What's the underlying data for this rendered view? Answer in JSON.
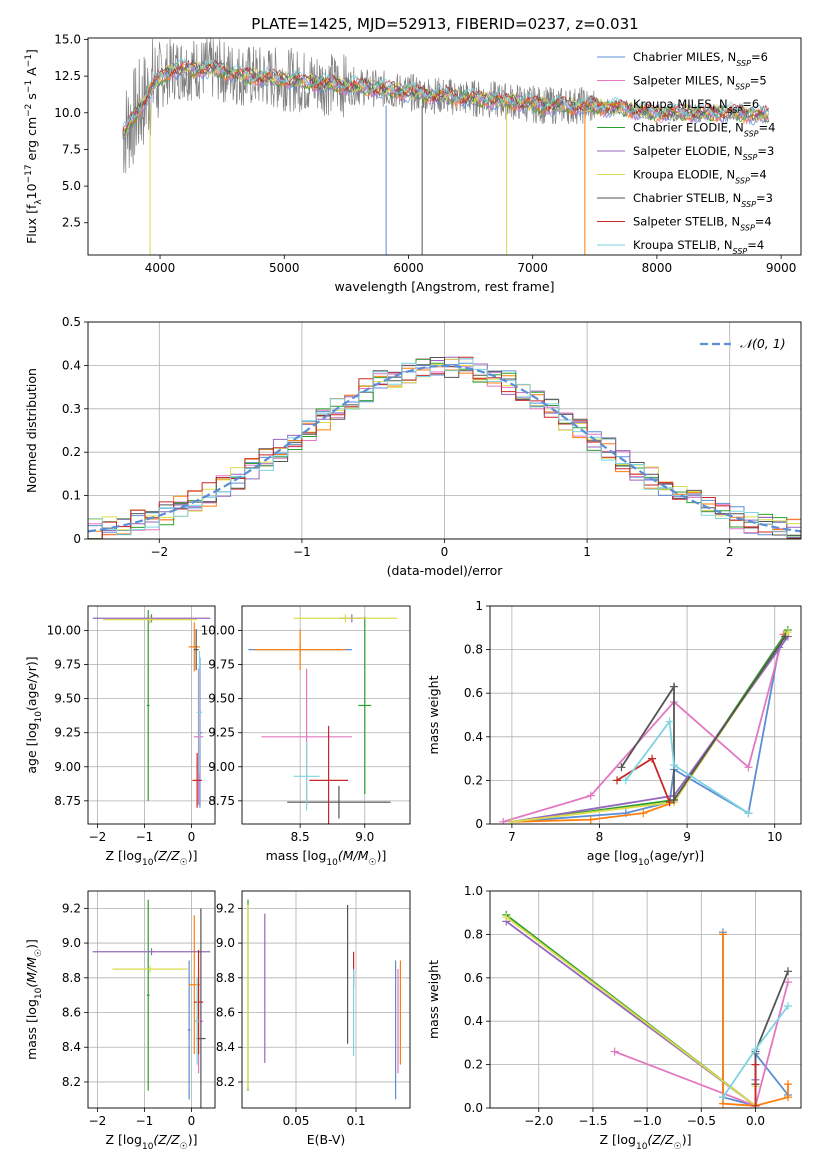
{
  "figure_title": "PLATE=1425, MJD=52913, FIBERID=0237, z=0.031",
  "colors": {
    "Chabrier MILES": "#5b8ed6",
    "Salpeter MILES": "#e377c2",
    "Kroupa MILES": "#ff7f0e",
    "Chabrier ELODIE": "#2ca02c",
    "Salpeter ELODIE": "#9467bd",
    "Kroupa ELODIE": "#dbdb4d",
    "Chabrier STELIB": "#555555",
    "Salpeter STELIB": "#c62828",
    "Kroupa STELIB": "#7fd3e0",
    "data": "#808080"
  },
  "legend_labels": [
    {
      "model": "Chabrier MILES",
      "pre": "Chabrier MILES, N",
      "sub": "SSP",
      "post": "=6"
    },
    {
      "model": "Salpeter MILES",
      "pre": "Salpeter MILES, N",
      "sub": "SSP",
      "post": "=5"
    },
    {
      "model": "Kroupa MILES",
      "pre": "Kroupa MILES, N",
      "sub": "SSP",
      "post": "=6"
    },
    {
      "model": "Chabrier ELODIE",
      "pre": "Chabrier ELODIE, N",
      "sub": "SSP",
      "post": "=4"
    },
    {
      "model": "Salpeter ELODIE",
      "pre": "Salpeter ELODIE, N",
      "sub": "SSP",
      "post": "=3"
    },
    {
      "model": "Kroupa ELODIE",
      "pre": "Kroupa ELODIE, N",
      "sub": "SSP",
      "post": "=4"
    },
    {
      "model": "Chabrier STELIB",
      "pre": "Chabrier STELIB, N",
      "sub": "SSP",
      "post": "=3"
    },
    {
      "model": "Salpeter STELIB",
      "pre": "Salpeter STELIB, N",
      "sub": "SSP",
      "post": "=4"
    },
    {
      "model": "Kroupa STELIB",
      "pre": "Kroupa STELIB, N",
      "sub": "SSP",
      "post": "=4"
    }
  ],
  "chart_data": [
    {
      "id": "spectrum",
      "type": "line",
      "xlabel": "wavelength [Angstrom, rest frame]",
      "ylabel": {
        "pre": "Flux [f",
        "sub": "λ",
        "mid": "10",
        "sup1": "−17",
        "post": " erg cm",
        "sup2": "−2",
        "post2": " s",
        "sup3": "−1",
        "post3": " A",
        "sup4": "−1",
        "end": "]"
      },
      "xlim": [
        3420,
        9160
      ],
      "ylim": [
        0.3,
        15.1
      ],
      "xticks": [
        4000,
        5000,
        6000,
        7000,
        8000,
        9000
      ],
      "yticks": [
        2.5,
        5.0,
        7.5,
        10.0,
        12.5,
        15.0
      ],
      "continuum": {
        "x": [
          3700,
          3850,
          3950,
          4100,
          4400,
          4700,
          5000,
          5300,
          5600,
          5900,
          6200,
          6500,
          6800,
          7100,
          7400,
          7700,
          8000,
          8300,
          8600,
          8900
        ],
        "y": [
          8.5,
          10.5,
          12.0,
          13.0,
          13.0,
          12.5,
          12.3,
          12.0,
          11.8,
          11.5,
          11.2,
          11.0,
          10.8,
          10.5,
          10.5,
          10.3,
          10.0,
          10.0,
          10.0,
          9.8
        ]
      },
      "grid": false
    },
    {
      "id": "residuals",
      "type": "histogram",
      "xlabel": "(data-model)/error",
      "ylabel": "Normed distribution",
      "xlim": [
        -2.5,
        2.5
      ],
      "ylim": [
        0,
        0.5
      ],
      "xticks": [
        -2,
        -1,
        0,
        1,
        2
      ],
      "yticks": [
        0.0,
        0.1,
        0.2,
        0.3,
        0.4,
        0.5
      ],
      "bin_width": 0.1,
      "legend": {
        "label": "𝒩(0, 1)",
        "location": "upper right"
      },
      "grid": true
    },
    {
      "id": "age_vs_Z",
      "type": "errorbar",
      "xlabel": {
        "pre": "Z [log",
        "sub": "10",
        "post": "(Z/Z",
        "sub2": "☉",
        "end": ")]"
      },
      "ylabel": {
        "pre": "age  [log",
        "sub": "10",
        "post": "(age/yr)]"
      },
      "xlim": [
        -2.2,
        0.5
      ],
      "ylim": [
        8.58,
        10.18
      ],
      "xticks": [
        -2,
        -1,
        0
      ],
      "yticks": [
        8.75,
        9.0,
        9.25,
        9.5,
        9.75,
        10.0
      ],
      "points": [
        {
          "model": "Chabrier MILES",
          "x": 0.18,
          "xerr": 0.05,
          "y": 9.25,
          "yerr": 0.55
        },
        {
          "model": "Salpeter MILES",
          "x": 0.15,
          "xerr": 0.1,
          "y": 9.22,
          "yerr": 0.5
        },
        {
          "model": "Kroupa MILES",
          "x": 0.06,
          "xerr": 0.12,
          "y": 9.88,
          "yerr": 0.18
        },
        {
          "model": "Chabrier ELODIE",
          "x": -0.92,
          "xerr": 0.03,
          "y": 9.45,
          "yerr": 0.7
        },
        {
          "model": "Salpeter ELODIE",
          "x": -0.85,
          "xerr": 1.25,
          "y": 10.09,
          "yerr": 0.03
        },
        {
          "model": "Kroupa ELODIE",
          "x": -0.88,
          "xerr": 1.0,
          "y": 10.08,
          "yerr": 0.03
        },
        {
          "model": "Chabrier STELIB",
          "x": 0.1,
          "xerr": 0.05,
          "y": 9.86,
          "yerr": 0.15
        },
        {
          "model": "Salpeter STELIB",
          "x": 0.12,
          "xerr": 0.1,
          "y": 8.9,
          "yerr": 0.2
        },
        {
          "model": "Kroupa STELIB",
          "x": 0.17,
          "xerr": 0.06,
          "y": 9.4,
          "yerr": 0.45
        }
      ],
      "grid": true
    },
    {
      "id": "age_vs_mass",
      "type": "errorbar",
      "xlabel": {
        "pre": "mass [log",
        "sub": "10",
        "post": "(M/M",
        "sub2": "☉",
        "end": ")]"
      },
      "ylabel": "",
      "xlim": [
        8.05,
        9.35
      ],
      "ylim": [
        8.58,
        10.18
      ],
      "xticks": [
        8.5,
        9.0
      ],
      "yticks": [
        8.75,
        9.0,
        9.25,
        9.5,
        9.75,
        10.0
      ],
      "points": [
        {
          "model": "Chabrier MILES",
          "x": 8.5,
          "xerr": 0.4,
          "y": 9.86,
          "yerr": 0.05
        },
        {
          "model": "Salpeter MILES",
          "x": 8.55,
          "xerr": 0.35,
          "y": 9.22,
          "yerr": 0.5
        },
        {
          "model": "Kroupa MILES",
          "x": 8.5,
          "xerr": 0.35,
          "y": 9.86,
          "yerr": 0.15
        },
        {
          "model": "Chabrier ELODIE",
          "x": 9.0,
          "xerr": 0.05,
          "y": 9.45,
          "yerr": 0.65
        },
        {
          "model": "Salpeter ELODIE",
          "x": 8.9,
          "xerr": 0.1,
          "y": 10.09,
          "yerr": 0.03
        },
        {
          "model": "Kroupa ELODIE",
          "x": 8.85,
          "xerr": 0.4,
          "y": 10.09,
          "yerr": 0.03
        },
        {
          "model": "Chabrier STELIB",
          "x": 8.8,
          "xerr": 0.4,
          "y": 8.74,
          "yerr": 0.12
        },
        {
          "model": "Salpeter STELIB",
          "x": 8.72,
          "xerr": 0.15,
          "y": 8.9,
          "yerr": 0.4
        },
        {
          "model": "Kroupa STELIB",
          "x": 8.55,
          "xerr": 0.1,
          "y": 8.93,
          "yerr": 0.25
        }
      ],
      "grid": true
    },
    {
      "id": "mass_weight_vs_age",
      "type": "line",
      "xlabel": {
        "pre": "age  [log",
        "sub": "10",
        "post": "(age/yr)]"
      },
      "ylabel": "mass weight",
      "xlim": [
        6.75,
        10.3
      ],
      "ylim": [
        0,
        1.0
      ],
      "xticks": [
        7,
        8,
        9,
        10
      ],
      "yticks": [
        0.0,
        0.2,
        0.4,
        0.6,
        0.8,
        1.0
      ],
      "series": [
        {
          "model": "Chabrier MILES",
          "x": [
            7.0,
            8.3,
            8.8,
            8.85,
            9.7,
            10.05
          ],
          "y": [
            0.01,
            0.05,
            0.1,
            0.25,
            0.05,
            0.81
          ]
        },
        {
          "model": "Salpeter MILES",
          "x": [
            6.9,
            7.9,
            8.85,
            9.7,
            10.1
          ],
          "y": [
            0.01,
            0.13,
            0.56,
            0.26,
            0.87
          ]
        },
        {
          "model": "Kroupa MILES",
          "x": [
            7.0,
            7.9,
            8.5,
            8.85,
            10.12
          ],
          "y": [
            0.01,
            0.02,
            0.05,
            0.1,
            0.87
          ]
        },
        {
          "model": "Chabrier ELODIE",
          "x": [
            7.0,
            8.85,
            10.15
          ],
          "y": [
            0.01,
            0.11,
            0.89
          ]
        },
        {
          "model": "Salpeter ELODIE",
          "x": [
            7.0,
            8.85,
            10.15
          ],
          "y": [
            0.01,
            0.13,
            0.86
          ]
        },
        {
          "model": "Kroupa ELODIE",
          "x": [
            7.0,
            8.85,
            10.15
          ],
          "y": [
            0.01,
            0.1,
            0.88
          ]
        },
        {
          "model": "Chabrier STELIB",
          "x": [
            8.25,
            8.85,
            8.85,
            10.12
          ],
          "y": [
            0.26,
            0.63,
            0.11,
            0.86
          ]
        },
        {
          "model": "Salpeter STELIB",
          "x": [
            8.2,
            8.6,
            8.8
          ],
          "y": [
            0.2,
            0.3,
            0.1
          ]
        },
        {
          "model": "Kroupa STELIB",
          "x": [
            8.3,
            8.8,
            8.85,
            9.7
          ],
          "y": [
            0.2,
            0.47,
            0.27,
            0.05
          ]
        }
      ],
      "grid": true
    },
    {
      "id": "mass_vs_Z",
      "type": "errorbar",
      "xlabel": {
        "pre": "Z [log",
        "sub": "10",
        "post": "(Z/Z",
        "sub2": "☉",
        "end": ")]"
      },
      "ylabel": {
        "pre": "mass [log",
        "sub": "10",
        "post": "(M/M",
        "sub2": "☉",
        "end": ")]"
      },
      "xlim": [
        -2.2,
        0.5
      ],
      "ylim": [
        8.05,
        9.3
      ],
      "xticks": [
        -2,
        -1,
        0
      ],
      "yticks": [
        8.2,
        8.4,
        8.6,
        8.8,
        9.0,
        9.2
      ],
      "points": [
        {
          "model": "Chabrier MILES",
          "x": -0.05,
          "xerr": 0.03,
          "y": 8.5,
          "yerr": 0.4
        },
        {
          "model": "Salpeter MILES",
          "x": 0.15,
          "xerr": 0.1,
          "y": 8.55,
          "yerr": 0.3
        },
        {
          "model": "Kroupa MILES",
          "x": 0.06,
          "xerr": 0.12,
          "y": 8.76,
          "yerr": 0.4
        },
        {
          "model": "Chabrier ELODIE",
          "x": -0.92,
          "xerr": 0.03,
          "y": 8.7,
          "yerr": 0.55
        },
        {
          "model": "Salpeter ELODIE",
          "x": -0.85,
          "xerr": 1.25,
          "y": 8.95,
          "yerr": 0.02
        },
        {
          "model": "Kroupa ELODIE",
          "x": -0.88,
          "xerr": 0.8,
          "y": 8.85,
          "yerr": 0.02
        },
        {
          "model": "Chabrier STELIB",
          "x": 0.2,
          "xerr": 0.1,
          "y": 8.45,
          "yerr": 0.75
        },
        {
          "model": "Salpeter STELIB",
          "x": 0.15,
          "xerr": 0.1,
          "y": 8.66,
          "yerr": 0.3
        },
        {
          "model": "Kroupa STELIB",
          "x": 0.12,
          "xerr": 0.05,
          "y": 8.55,
          "yerr": 0.25
        }
      ],
      "grid": true
    },
    {
      "id": "mass_vs_EBV",
      "type": "errorbar",
      "xlabel": "E(B-V)",
      "ylabel": "",
      "xlim": [
        0.005,
        0.145
      ],
      "ylim": [
        8.05,
        9.3
      ],
      "xticks": [
        0.05,
        0.1
      ],
      "yticks": [
        8.2,
        8.4,
        8.6,
        8.8,
        9.0,
        9.2
      ],
      "points": [
        {
          "model": "Chabrier MILES",
          "x": 0.133,
          "y": 8.5,
          "yerr": 0.4
        },
        {
          "model": "Salpeter MILES",
          "x": 0.135,
          "y": 8.55,
          "yerr": 0.3
        },
        {
          "model": "Kroupa MILES",
          "x": 0.137,
          "y": 8.6,
          "yerr": 0.3
        },
        {
          "model": "Chabrier ELODIE",
          "x": 0.01,
          "y": 8.7,
          "yerr": 0.55
        },
        {
          "model": "Salpeter ELODIE",
          "x": 0.024,
          "y": 8.74,
          "yerr": 0.43
        },
        {
          "model": "Kroupa ELODIE",
          "x": 0.01,
          "y": 8.69,
          "yerr": 0.53
        },
        {
          "model": "Chabrier STELIB",
          "x": 0.093,
          "y": 8.82,
          "yerr": 0.4
        },
        {
          "model": "Salpeter STELIB",
          "x": 0.098,
          "y": 8.85,
          "yerr": 0.1
        },
        {
          "model": "Kroupa STELIB",
          "x": 0.098,
          "y": 8.6,
          "yerr": 0.25
        }
      ],
      "grid": true
    },
    {
      "id": "mass_weight_vs_Z",
      "type": "line",
      "xlabel": {
        "pre": "Z [log",
        "sub": "10",
        "post": "(Z/Z",
        "sub2": "☉",
        "end": ")]"
      },
      "ylabel": "mass weight",
      "xlim": [
        -2.45,
        0.42
      ],
      "ylim": [
        0,
        1.0
      ],
      "xticks": [
        -2.0,
        -1.5,
        -1.0,
        -0.5,
        0.0
      ],
      "yticks": [
        0.0,
        0.2,
        0.4,
        0.6,
        0.8,
        1.0
      ],
      "series": [
        {
          "model": "Chabrier MILES",
          "x": [
            -0.3,
            -0.3,
            0.0,
            0.0,
            0.3
          ],
          "y": [
            0.81,
            0.05,
            0.01,
            0.25,
            0.06
          ]
        },
        {
          "model": "Salpeter MILES",
          "x": [
            -1.3,
            0.0,
            0.3
          ],
          "y": [
            0.26,
            0.01,
            0.58
          ]
        },
        {
          "model": "Kroupa MILES",
          "x": [
            -0.3,
            -0.3,
            0.0,
            0.3,
            0.3
          ],
          "y": [
            0.8,
            0.02,
            0.01,
            0.05,
            0.11
          ]
        },
        {
          "model": "Chabrier ELODIE",
          "x": [
            -2.3,
            0.0,
            0.0
          ],
          "y": [
            0.89,
            0.01,
            0.11
          ]
        },
        {
          "model": "Salpeter ELODIE",
          "x": [
            -2.3,
            0.0,
            0.0
          ],
          "y": [
            0.86,
            0.01,
            0.13
          ]
        },
        {
          "model": "Kroupa ELODIE",
          "x": [
            -2.3,
            0.0,
            0.0
          ],
          "y": [
            0.88,
            0.01,
            0.1
          ]
        },
        {
          "model": "Chabrier STELIB",
          "x": [
            0.0,
            0.0,
            0.3
          ],
          "y": [
            0.11,
            0.26,
            0.63
          ]
        },
        {
          "model": "Salpeter STELIB",
          "x": [
            0.0,
            0.0
          ],
          "y": [
            0.01,
            0.2
          ]
        },
        {
          "model": "Kroupa STELIB",
          "x": [
            -0.3,
            0.0,
            0.3
          ],
          "y": [
            0.05,
            0.27,
            0.47
          ]
        }
      ],
      "grid": true
    }
  ]
}
